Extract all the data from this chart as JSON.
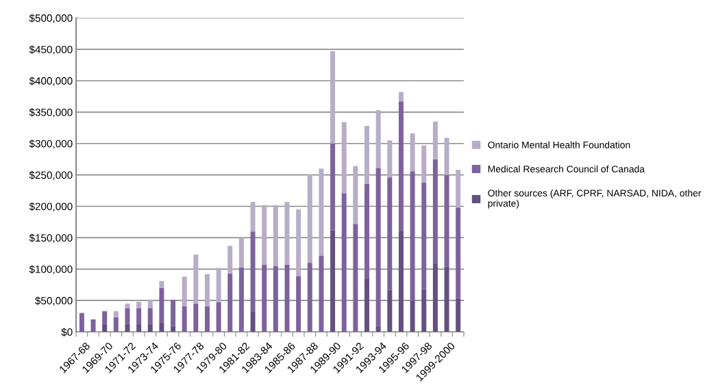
{
  "chart_data": {
    "type": "bar",
    "stacked": true,
    "categories": [
      "1967-68",
      null,
      "1969-70",
      null,
      "1971-72",
      null,
      "1973-74",
      null,
      "1975-76",
      null,
      "1977-78",
      null,
      "1979-80",
      null,
      "1981-82",
      null,
      "1983-84",
      null,
      "1985-86",
      null,
      "1987-88",
      null,
      "1989-90",
      null,
      "1991-92",
      null,
      "1993-94",
      null,
      "1995-96",
      null,
      "1997-98",
      null,
      "1999-2000",
      null
    ],
    "series": [
      {
        "name": "Other sources (ARF, CPRF, NARSAD, NIDA, other private)",
        "color": "#634f80",
        "values": [
          0,
          0,
          13000,
          0,
          13000,
          13000,
          13000,
          15000,
          9000,
          0,
          0,
          0,
          0,
          0,
          0,
          33000,
          0,
          0,
          0,
          0,
          0,
          0,
          162000,
          2000,
          null,
          84000,
          9000,
          67000,
          161000,
          49000,
          68000,
          108000,
          104000,
          54000
        ]
      },
      {
        "name": "Medical Research Council of Canada",
        "color": "#7d629d",
        "values": [
          30000,
          20000,
          20000,
          23000,
          25000,
          25000,
          25000,
          55000,
          42000,
          41000,
          45000,
          41000,
          47000,
          93000,
          103000,
          127000,
          107000,
          105000,
          107000,
          89000,
          110000,
          121000,
          138000,
          219000,
          172000,
          152000,
          252000,
          179000,
          206000,
          207000,
          170000,
          167000,
          146000,
          144000
        ]
      },
      {
        "name": "Ontario Mental Health Foundation",
        "color": "#b8adc8",
        "values": [
          0,
          0,
          0,
          10000,
          7000,
          10000,
          12000,
          11000,
          0,
          47000,
          78000,
          51000,
          55000,
          44000,
          47000,
          47000,
          95000,
          97000,
          100000,
          106000,
          141000,
          139000,
          147000,
          113000,
          92000,
          92000,
          92000,
          59000,
          15000,
          60000,
          59000,
          60000,
          59000,
          60000
        ]
      }
    ],
    "ylim": [
      0,
      500000
    ],
    "yticks": [
      {
        "value": 0,
        "label": "$0"
      },
      {
        "value": 50000,
        "label": "$50,000"
      },
      {
        "value": 100000,
        "label": "$100,000"
      },
      {
        "value": 150000,
        "label": "$150,000"
      },
      {
        "value": 200000,
        "label": "$200,000"
      },
      {
        "value": 250000,
        "label": "$250,000"
      },
      {
        "value": 300000,
        "label": "$300,000"
      },
      {
        "value": 350000,
        "label": "$350,000"
      },
      {
        "value": 400000,
        "label": "$400,000"
      },
      {
        "value": 450000,
        "label": "$450,000"
      },
      {
        "value": 500000,
        "label": "$500,000"
      }
    ],
    "grid": "y",
    "legend": "right"
  }
}
